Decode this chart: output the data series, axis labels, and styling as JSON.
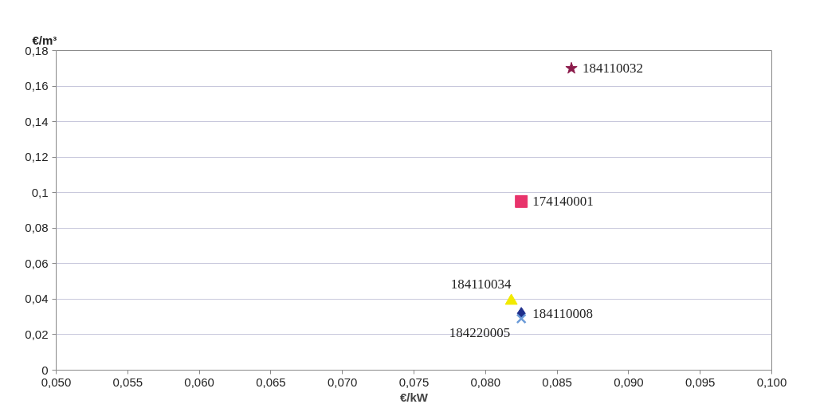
{
  "chart_data": {
    "type": "scatter",
    "xlabel": "€/kW",
    "ylabel": "€/m³",
    "xlim": [
      0.05,
      0.1
    ],
    "ylim": [
      0,
      0.18
    ],
    "xticks": [
      {
        "value": 0.05,
        "label": "0,050"
      },
      {
        "value": 0.055,
        "label": "0,055"
      },
      {
        "value": 0.06,
        "label": "0,060"
      },
      {
        "value": 0.065,
        "label": "0,065"
      },
      {
        "value": 0.07,
        "label": "0,070"
      },
      {
        "value": 0.075,
        "label": "0,075"
      },
      {
        "value": 0.08,
        "label": "0,080"
      },
      {
        "value": 0.085,
        "label": "0,085"
      },
      {
        "value": 0.09,
        "label": "0,090"
      },
      {
        "value": 0.095,
        "label": "0,095"
      },
      {
        "value": 0.1,
        "label": "0,100"
      }
    ],
    "yticks": [
      0,
      {
        "value": 0.02,
        "label": "0,02"
      },
      {
        "value": 0.04,
        "label": "0,04"
      },
      {
        "value": 0.06,
        "label": "0,06"
      },
      {
        "value": 0.08,
        "label": "0,08"
      },
      {
        "value": 0.1,
        "label": "0,1"
      },
      {
        "value": 0.12,
        "label": "0,12"
      },
      {
        "value": 0.14,
        "label": "0,14"
      },
      {
        "value": 0.16,
        "label": "0,16"
      },
      {
        "value": 0.18,
        "label": "0,18"
      }
    ],
    "grid": "y",
    "series": [
      {
        "name": "184110008",
        "color": "#1f2f8c",
        "marker": "diamond",
        "x": [
          0.0825
        ],
        "values": [
          0.032
        ]
      },
      {
        "name": "174140001",
        "color": "#e8336b",
        "marker": "square",
        "x": [
          0.0825
        ],
        "values": [
          0.095
        ]
      },
      {
        "name": "184110034",
        "color": "#f2ea00",
        "marker": "triangle",
        "x": [
          0.0818
        ],
        "values": [
          0.039
        ]
      },
      {
        "name": "184220005",
        "color": "#6b9bd8",
        "marker": "cross",
        "x": [
          0.0825
        ],
        "values": [
          0.029
        ]
      },
      {
        "name": "184110032",
        "color": "#8b1a4a",
        "marker": "star",
        "x": [
          0.086
        ],
        "values": [
          0.17
        ]
      }
    ]
  }
}
